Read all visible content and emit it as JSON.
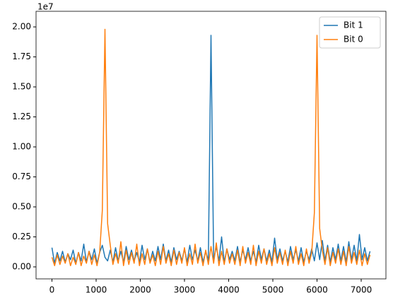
{
  "chart_data": {
    "type": "line",
    "offset_label": "1e7",
    "x": [
      0,
      60,
      120,
      180,
      240,
      300,
      360,
      420,
      480,
      540,
      600,
      660,
      720,
      780,
      840,
      900,
      960,
      1020,
      1080,
      1140,
      1200,
      1260,
      1320,
      1380,
      1440,
      1500,
      1560,
      1620,
      1680,
      1740,
      1800,
      1860,
      1920,
      1980,
      2040,
      2100,
      2160,
      2220,
      2280,
      2340,
      2400,
      2460,
      2520,
      2580,
      2640,
      2700,
      2760,
      2820,
      2880,
      2940,
      3000,
      3060,
      3120,
      3180,
      3240,
      3300,
      3360,
      3420,
      3480,
      3540,
      3600,
      3660,
      3720,
      3780,
      3840,
      3900,
      3960,
      4020,
      4080,
      4140,
      4200,
      4260,
      4320,
      4380,
      4440,
      4500,
      4560,
      4620,
      4680,
      4740,
      4800,
      4860,
      4920,
      4980,
      5040,
      5100,
      5160,
      5220,
      5280,
      5340,
      5400,
      5460,
      5520,
      5580,
      5640,
      5700,
      5760,
      5820,
      5880,
      5940,
      6000,
      6060,
      6120,
      6180,
      6240,
      6300,
      6360,
      6420,
      6480,
      6540,
      6600,
      6660,
      6720,
      6780,
      6840,
      6900,
      6960,
      7020,
      7080,
      7140,
      7200
    ],
    "series": [
      {
        "name": "Bit 1",
        "color": "#1f77b4",
        "values": [
          0.16,
          0.03,
          0.12,
          0.05,
          0.13,
          0.04,
          0.11,
          0.06,
          0.14,
          0.03,
          0.12,
          0.05,
          0.19,
          0.04,
          0.13,
          0.06,
          0.15,
          0.03,
          0.12,
          0.18,
          0.08,
          0.05,
          0.14,
          0.04,
          0.16,
          0.05,
          0.13,
          0.04,
          0.17,
          0.06,
          0.14,
          0.05,
          0.12,
          0.04,
          0.18,
          0.06,
          0.15,
          0.04,
          0.13,
          0.05,
          0.17,
          0.06,
          0.19,
          0.05,
          0.14,
          0.04,
          0.16,
          0.06,
          0.13,
          0.05,
          0.15,
          0.04,
          0.18,
          0.06,
          0.14,
          0.05,
          0.16,
          0.04,
          0.13,
          0.05,
          1.93,
          0.06,
          0.17,
          0.05,
          0.25,
          0.04,
          0.15,
          0.06,
          0.13,
          0.05,
          0.17,
          0.04,
          0.14,
          0.06,
          0.16,
          0.05,
          0.13,
          0.04,
          0.18,
          0.06,
          0.15,
          0.05,
          0.14,
          0.04,
          0.24,
          0.06,
          0.15,
          0.05,
          0.13,
          0.04,
          0.17,
          0.06,
          0.14,
          0.05,
          0.16,
          0.04,
          0.13,
          0.06,
          0.15,
          0.05,
          0.2,
          0.06,
          0.22,
          0.05,
          0.18,
          0.04,
          0.16,
          0.06,
          0.19,
          0.05,
          0.17,
          0.04,
          0.21,
          0.06,
          0.18,
          0.05,
          0.27,
          0.06,
          0.16,
          0.05,
          0.13
        ]
      },
      {
        "name": "Bit 0",
        "color": "#ff7f0e",
        "values": [
          0.08,
          0.01,
          0.1,
          0.02,
          0.09,
          0.03,
          0.11,
          0.01,
          0.08,
          0.02,
          0.12,
          0.01,
          0.09,
          0.03,
          0.13,
          0.02,
          0.1,
          0.01,
          0.12,
          0.47,
          1.98,
          0.36,
          0.18,
          0.02,
          0.11,
          0.03,
          0.21,
          0.01,
          0.14,
          0.02,
          0.12,
          0.03,
          0.19,
          0.01,
          0.11,
          0.02,
          0.15,
          0.03,
          0.1,
          0.01,
          0.13,
          0.02,
          0.17,
          0.03,
          0.11,
          0.01,
          0.14,
          0.02,
          0.12,
          0.03,
          0.16,
          0.01,
          0.11,
          0.02,
          0.19,
          0.03,
          0.12,
          0.01,
          0.14,
          0.02,
          0.17,
          0.03,
          0.2,
          0.01,
          0.13,
          0.02,
          0.15,
          0.03,
          0.11,
          0.02,
          0.14,
          0.01,
          0.17,
          0.03,
          0.12,
          0.02,
          0.18,
          0.01,
          0.13,
          0.03,
          0.15,
          0.02,
          0.11,
          0.01,
          0.16,
          0.03,
          0.12,
          0.02,
          0.14,
          0.01,
          0.13,
          0.03,
          0.17,
          0.02,
          0.11,
          0.01,
          0.15,
          0.03,
          0.12,
          0.45,
          1.93,
          0.32,
          0.14,
          0.02,
          0.16,
          0.01,
          0.12,
          0.03,
          0.15,
          0.02,
          0.13,
          0.01,
          0.17,
          0.03,
          0.12,
          0.02,
          0.14,
          0.01,
          0.11,
          0.02,
          0.1
        ]
      }
    ],
    "xlim": [
      -360,
      7560
    ],
    "xticks": [
      0,
      1000,
      2000,
      3000,
      4000,
      5000,
      6000,
      7000
    ],
    "ylim": [
      -0.1,
      2.13
    ],
    "yticks": [
      {
        "value": 0,
        "label": "0.00"
      },
      {
        "value": 0.25,
        "label": "0.25"
      },
      {
        "value": 0.5,
        "label": "0.50"
      },
      {
        "value": 0.75,
        "label": "0.75"
      },
      {
        "value": 1,
        "label": "1.00"
      },
      {
        "value": 1.25,
        "label": "1.25"
      },
      {
        "value": 1.5,
        "label": "1.50"
      },
      {
        "value": 1.75,
        "label": "1.75"
      },
      {
        "value": 2,
        "label": "2.00"
      }
    ],
    "legend": "upper right"
  }
}
